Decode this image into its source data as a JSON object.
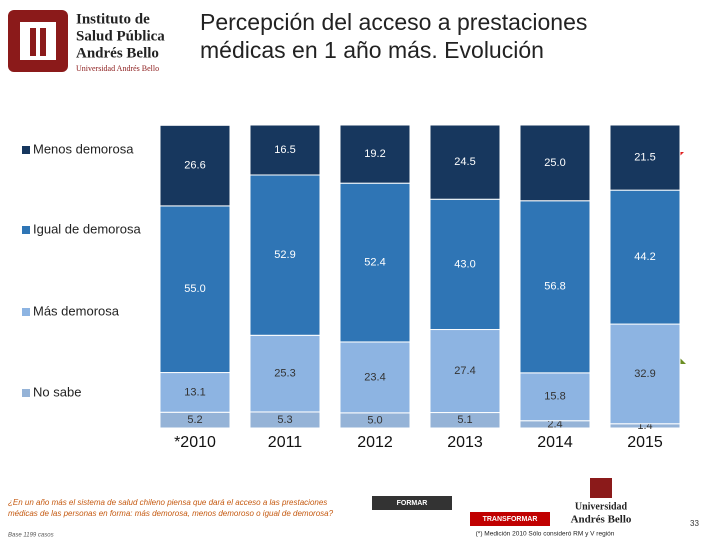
{
  "header": {
    "logo_lines": [
      "Instituto de",
      "Salud Pública",
      "Andrés Bello"
    ],
    "logo_caption": "Universidad Andrés Bello"
  },
  "chart_data": {
    "type": "stacked-bar",
    "title": "Percepción del acceso a prestaciones médicas en 1 año más. Evolución",
    "categories": [
      "*2010",
      "2011",
      "2012",
      "2013",
      "2014",
      "2015"
    ],
    "ylim": [
      0,
      100
    ],
    "series": [
      {
        "name": "Menos demorosa",
        "color": "#17375e",
        "values": [
          26.6,
          16.5,
          19.2,
          24.5,
          25.0,
          21.5
        ],
        "value_labels": [
          "26.6",
          "16.5",
          "19.2",
          "24.5",
          "25.0",
          "21.5"
        ]
      },
      {
        "name": "Igual de demorosa",
        "color": "#2f75b5",
        "values": [
          55.0,
          52.9,
          52.4,
          43.0,
          56.8,
          44.2
        ],
        "value_labels": [
          "55.0",
          "52.9",
          "52.4",
          "43.0",
          "56.8",
          "44.2"
        ]
      },
      {
        "name": "Más demorosa",
        "color": "#8db4e2",
        "values": [
          13.1,
          25.3,
          23.4,
          27.4,
          15.8,
          32.9
        ],
        "value_labels": [
          "13.1",
          "25.3",
          "23.4",
          "27.4",
          "15.8",
          "32.9"
        ]
      },
      {
        "name": "No sabe",
        "color": "#95b3d7",
        "values": [
          5.2,
          5.3,
          5.0,
          5.1,
          2.4,
          1.4
        ],
        "value_labels": [
          "5.2",
          "5.3",
          "5.0",
          "5.1",
          "2.4",
          "1.4"
        ]
      }
    ]
  },
  "footer": {
    "question": "¿En un año más el sistema de salud chileno piensa que dará el acceso a las prestaciones médicas de las personas en forma: más demorosa, menos demoroso o igual de demorosa?",
    "base": "Base 1199 casos",
    "tag1": "FORMAR",
    "tag2": "TRANSFORMAR",
    "university": [
      "Universidad",
      "Andrés Bello"
    ],
    "note": "(*) Medición 2010 Sólo consideró RM y V región",
    "page": "33"
  }
}
